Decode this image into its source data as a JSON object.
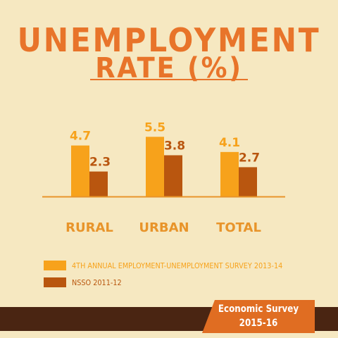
{
  "title": {
    "line1": "UNEMPLOYMENT",
    "line2": "RATE (%)"
  },
  "colors": {
    "background": "#f6e8c1",
    "title": "#e8742a",
    "series1": "#f7a21b",
    "series2": "#b9560f",
    "axis": "#e8942a",
    "footer_band": "#4a2512",
    "badge": "#e06d22"
  },
  "chart_data": {
    "type": "bar",
    "title": "UNEMPLOYMENT RATE (%)",
    "categories": [
      "RURAL",
      "URBAN",
      "TOTAL"
    ],
    "series": [
      {
        "name": "4TH ANNUAL EMPLOYMENT-UNEMPLOYMENT SURVEY 2013-14",
        "values": [
          4.7,
          5.5,
          4.1
        ],
        "labels": [
          "4.7",
          "5.5",
          "4.1"
        ]
      },
      {
        "name": "NSSO 2011-12",
        "values": [
          2.3,
          3.8,
          2.7
        ],
        "labels": [
          "2.3",
          "3.8",
          "2.7"
        ]
      }
    ],
    "ylim": [
      0,
      6
    ],
    "grid": false,
    "legend": "bottom-left"
  },
  "footer": {
    "line1": "Economic Survey",
    "line2": "2015-16"
  }
}
